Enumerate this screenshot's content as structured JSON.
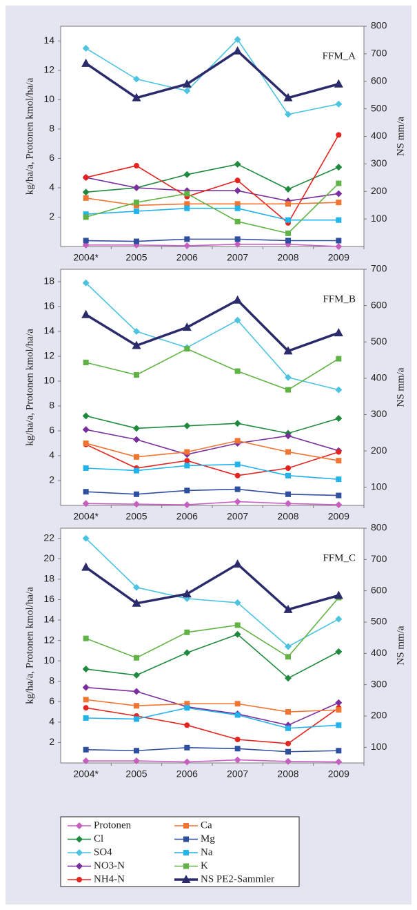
{
  "chart_data": [
    {
      "type": "line",
      "annotation": "FFM_A",
      "ylabel": "kg/ha/a, Protonen kmol/ha/a",
      "y2label": "NS mm/a",
      "categories": [
        "2004*",
        "2005",
        "2006",
        "2007",
        "2008",
        "2009"
      ],
      "ylim": [
        0,
        15
      ],
      "yticks": [
        2,
        4,
        6,
        8,
        10,
        12,
        14
      ],
      "y2lim": [
        0,
        800
      ],
      "y2ticks": [
        100,
        200,
        300,
        400,
        500,
        600,
        700,
        800
      ],
      "series": [
        {
          "name": "Protonen",
          "color": "#c65fc0",
          "marker": "diamond",
          "values": [
            0.1,
            0.1,
            0.05,
            0.15,
            0.15,
            0.0
          ]
        },
        {
          "name": "Cl",
          "color": "#1f8a3e",
          "marker": "diamond",
          "values": [
            3.7,
            4.0,
            4.9,
            5.6,
            3.9,
            5.4
          ]
        },
        {
          "name": "SO4",
          "color": "#4cc3e0",
          "marker": "diamond",
          "values": [
            13.5,
            11.4,
            10.6,
            14.1,
            9.0,
            9.7
          ]
        },
        {
          "name": "NO3-N",
          "color": "#7a2f9c",
          "marker": "diamond",
          "values": [
            4.7,
            4.0,
            3.8,
            3.8,
            3.1,
            3.6
          ]
        },
        {
          "name": "NH4-N",
          "color": "#e3241f",
          "marker": "circle",
          "values": [
            4.7,
            5.5,
            3.4,
            4.5,
            1.6,
            7.6
          ]
        },
        {
          "name": "Ca",
          "color": "#f07532",
          "marker": "square",
          "values": [
            3.3,
            2.8,
            2.9,
            2.9,
            2.9,
            3.0
          ]
        },
        {
          "name": "Mg",
          "color": "#2e4f9e",
          "marker": "square",
          "values": [
            0.4,
            0.35,
            0.5,
            0.5,
            0.4,
            0.4
          ]
        },
        {
          "name": "Na",
          "color": "#23b2ea",
          "marker": "square",
          "values": [
            2.2,
            2.4,
            2.6,
            2.6,
            1.8,
            1.8
          ]
        },
        {
          "name": "K",
          "color": "#62b345",
          "marker": "square",
          "values": [
            2.0,
            3.0,
            3.6,
            1.7,
            0.9,
            4.3
          ]
        },
        {
          "name": "NS PE2-Sammler",
          "color": "#2b2a6b",
          "marker": "triangle",
          "axis": "y2",
          "values": [
            665,
            540,
            590,
            710,
            540,
            590
          ]
        }
      ]
    },
    {
      "type": "line",
      "annotation": "FFM_B",
      "ylabel": "kg/ha/a, Protonen kmol/ha/a",
      "y2label": "NS mm/a",
      "categories": [
        "2004*",
        "2005",
        "2006",
        "2007",
        "2008",
        "2009"
      ],
      "ylim": [
        0,
        19
      ],
      "yticks": [
        2,
        4,
        6,
        8,
        10,
        12,
        14,
        16,
        18
      ],
      "y2lim": [
        50,
        700
      ],
      "y2ticks": [
        100,
        200,
        300,
        400,
        500,
        600,
        700
      ],
      "series": [
        {
          "name": "Protonen",
          "color": "#c65fc0",
          "marker": "diamond",
          "values": [
            0.15,
            0.1,
            0.05,
            0.3,
            0.15,
            0.05
          ]
        },
        {
          "name": "Cl",
          "color": "#1f8a3e",
          "marker": "diamond",
          "values": [
            7.2,
            6.2,
            6.4,
            6.6,
            5.8,
            7.0
          ]
        },
        {
          "name": "SO4",
          "color": "#4cc3e0",
          "marker": "diamond",
          "values": [
            17.9,
            14.0,
            12.7,
            14.9,
            10.3,
            9.3
          ]
        },
        {
          "name": "NO3-N",
          "color": "#7a2f9c",
          "marker": "diamond",
          "values": [
            6.1,
            5.3,
            4.1,
            5.0,
            5.6,
            4.4
          ]
        },
        {
          "name": "NH4-N",
          "color": "#e3241f",
          "marker": "circle",
          "values": [
            4.9,
            3.0,
            3.6,
            2.4,
            3.0,
            4.3
          ]
        },
        {
          "name": "Ca",
          "color": "#f07532",
          "marker": "square",
          "values": [
            5.0,
            3.9,
            4.3,
            5.2,
            4.3,
            3.6
          ]
        },
        {
          "name": "Mg",
          "color": "#2e4f9e",
          "marker": "square",
          "values": [
            1.1,
            0.9,
            1.2,
            1.3,
            0.9,
            0.8
          ]
        },
        {
          "name": "Na",
          "color": "#23b2ea",
          "marker": "square",
          "values": [
            3.0,
            2.8,
            3.2,
            3.3,
            2.4,
            2.1
          ]
        },
        {
          "name": "K",
          "color": "#62b345",
          "marker": "square",
          "values": [
            11.5,
            10.5,
            12.6,
            10.8,
            9.3,
            11.8
          ]
        },
        {
          "name": "NS PE2-Sammler",
          "color": "#2b2a6b",
          "marker": "triangle",
          "axis": "y2",
          "values": [
            575,
            490,
            540,
            615,
            475,
            525
          ]
        }
      ]
    },
    {
      "type": "line",
      "annotation": "FFM_C",
      "ylabel": "kg/ha/a, Protonen kmol/ha/a",
      "y2label": "NS mm/a",
      "categories": [
        "2004*",
        "2005",
        "2006",
        "2007",
        "2008",
        "2009"
      ],
      "ylim": [
        0,
        23
      ],
      "yticks": [
        2,
        4,
        6,
        8,
        10,
        12,
        14,
        16,
        18,
        20,
        22
      ],
      "y2lim": [
        50,
        800
      ],
      "y2ticks": [
        100,
        200,
        300,
        400,
        500,
        600,
        700,
        800
      ],
      "series": [
        {
          "name": "Protonen",
          "color": "#c65fc0",
          "marker": "diamond",
          "values": [
            0.2,
            0.2,
            0.1,
            0.3,
            0.15,
            0.1
          ]
        },
        {
          "name": "Cl",
          "color": "#1f8a3e",
          "marker": "diamond",
          "values": [
            9.2,
            8.6,
            10.8,
            12.6,
            8.3,
            10.9
          ]
        },
        {
          "name": "SO4",
          "color": "#4cc3e0",
          "marker": "diamond",
          "values": [
            22.0,
            17.2,
            16.1,
            15.7,
            11.4,
            14.1
          ]
        },
        {
          "name": "NO3-N",
          "color": "#7a2f9c",
          "marker": "diamond",
          "values": [
            7.4,
            7.0,
            5.5,
            4.8,
            3.7,
            5.9
          ]
        },
        {
          "name": "NH4-N",
          "color": "#e3241f",
          "marker": "circle",
          "values": [
            5.4,
            4.6,
            3.7,
            2.3,
            1.9,
            5.4
          ]
        },
        {
          "name": "Ca",
          "color": "#f07532",
          "marker": "square",
          "values": [
            6.2,
            5.6,
            5.8,
            5.8,
            5.0,
            5.2
          ]
        },
        {
          "name": "Mg",
          "color": "#2e4f9e",
          "marker": "square",
          "values": [
            1.3,
            1.2,
            1.5,
            1.4,
            1.1,
            1.2
          ]
        },
        {
          "name": "Na",
          "color": "#23b2ea",
          "marker": "square",
          "values": [
            4.4,
            4.3,
            5.4,
            4.7,
            3.4,
            3.7
          ]
        },
        {
          "name": "K",
          "color": "#62b345",
          "marker": "square",
          "values": [
            12.2,
            10.3,
            12.8,
            13.5,
            10.4,
            16.2
          ]
        },
        {
          "name": "NS PE2-Sammler",
          "color": "#2b2a6b",
          "marker": "triangle",
          "axis": "y2",
          "values": [
            675,
            560,
            590,
            685,
            540,
            585
          ]
        }
      ]
    }
  ]
}
